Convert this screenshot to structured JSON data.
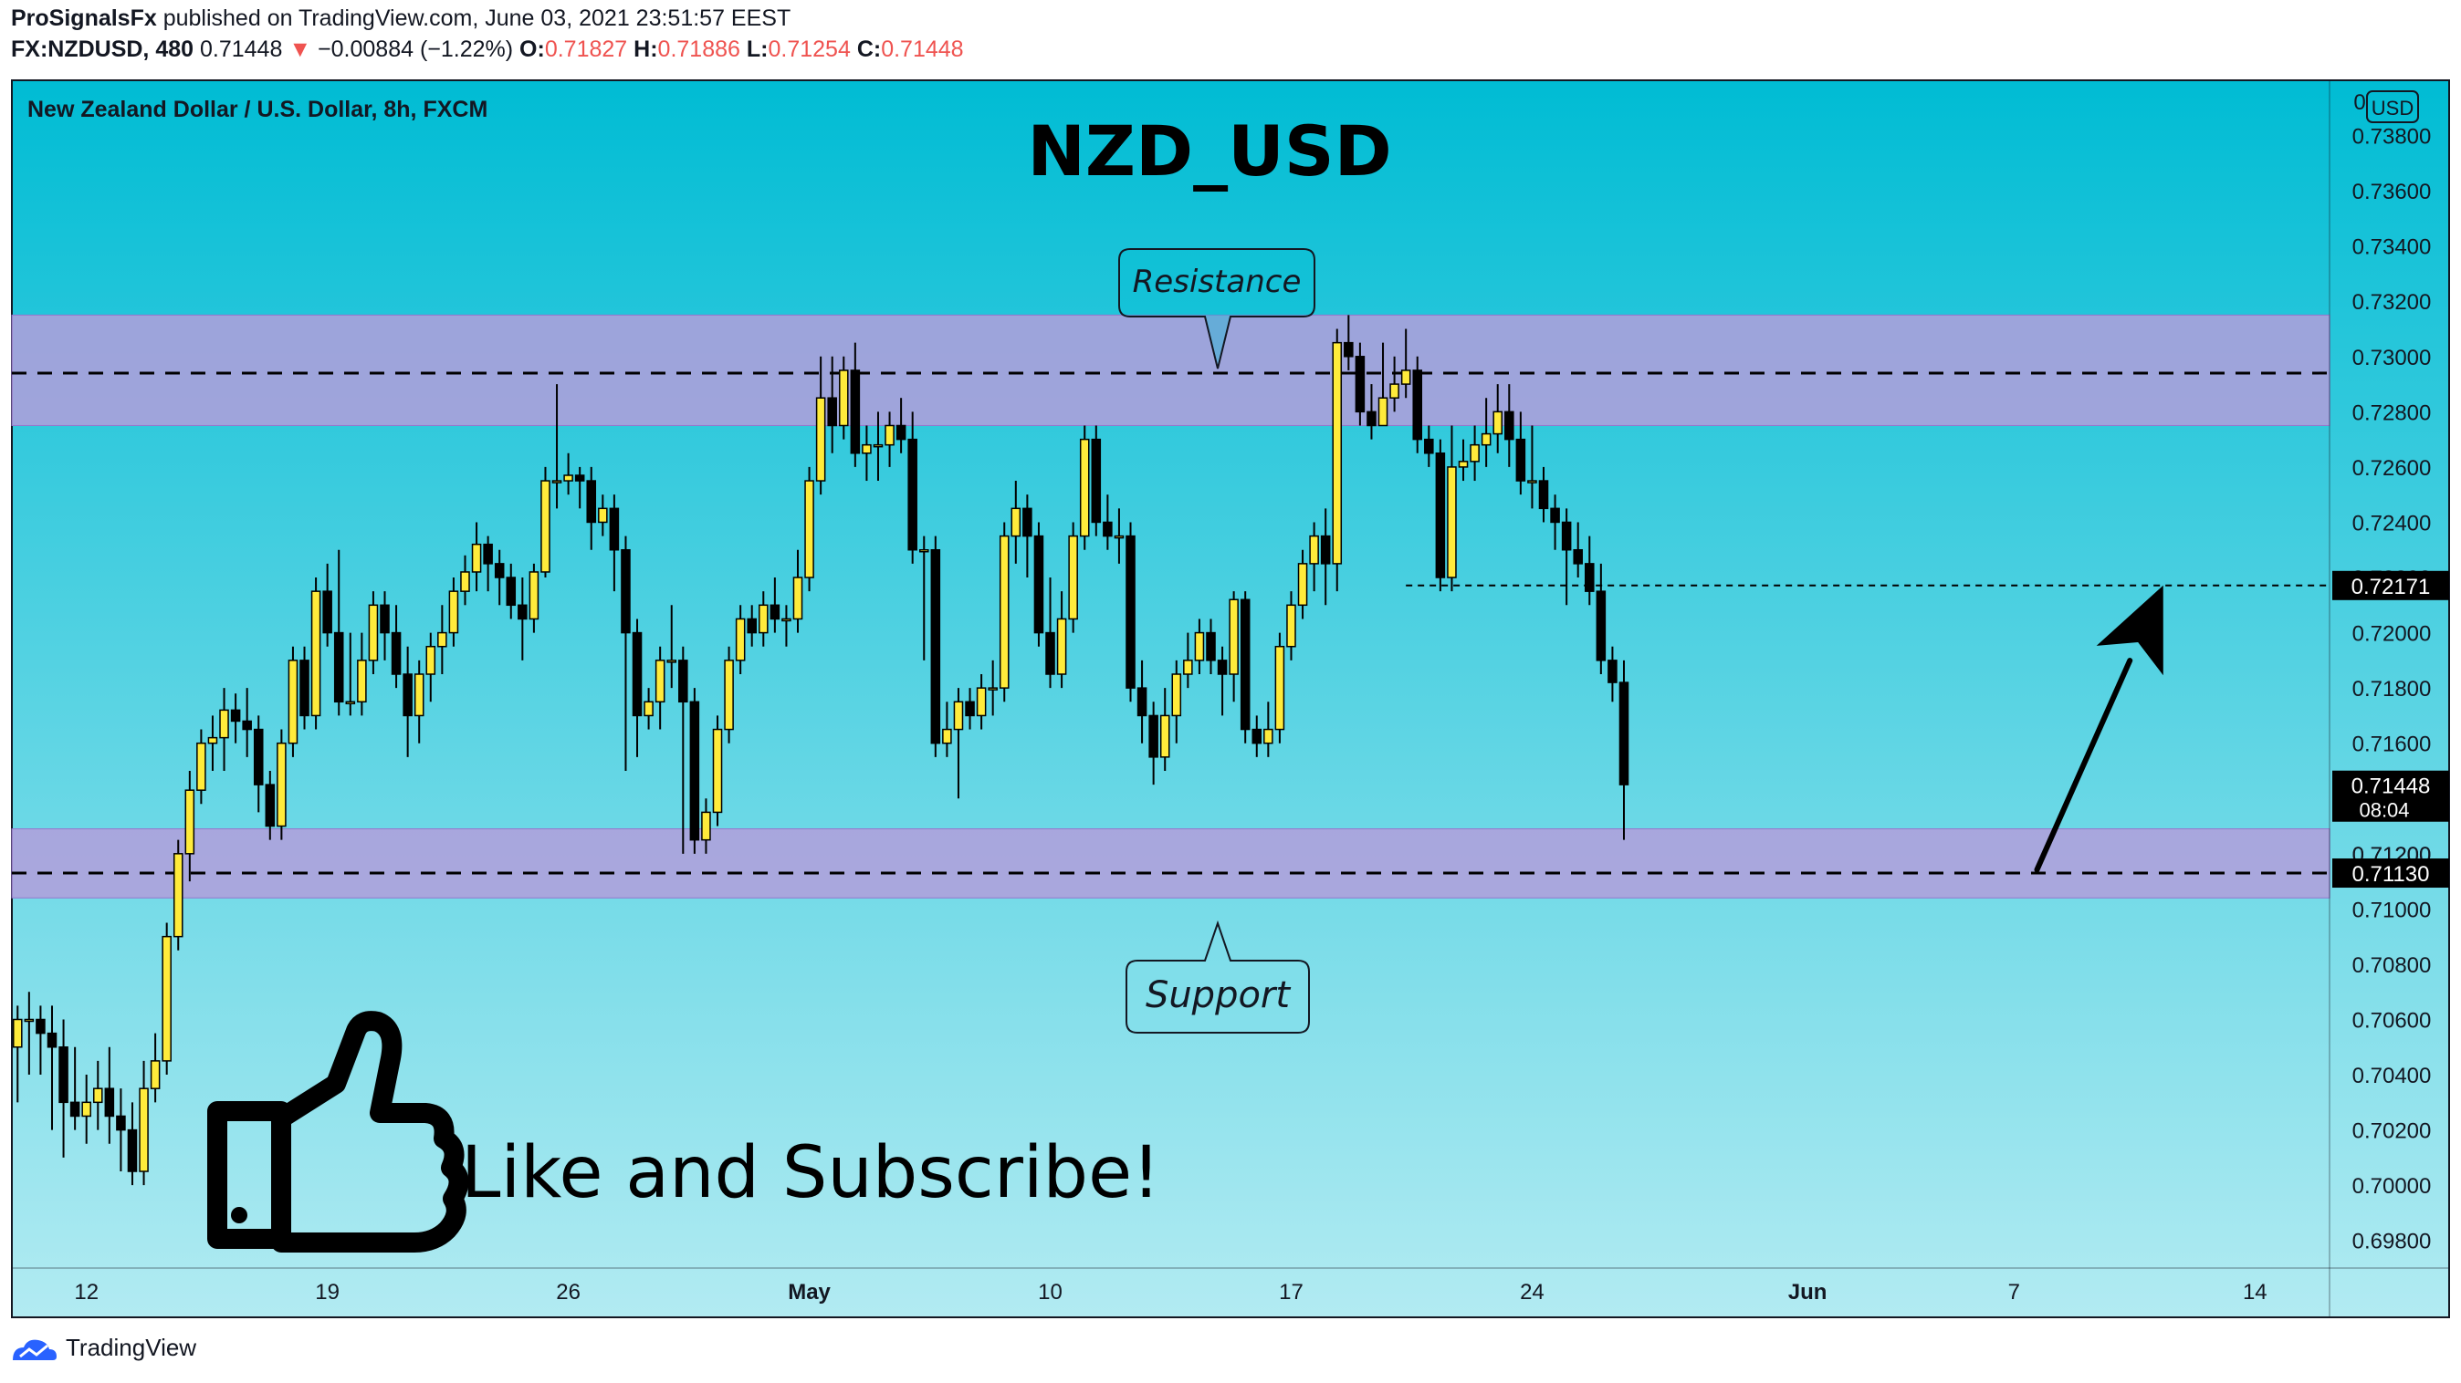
{
  "header": {
    "author": "ProSignalsFx",
    "published_text": " published on TradingView.com, June 03, 2021 23:51:57 EEST",
    "symbol": "FX:NZDUSD, 480",
    "last": "0.71448",
    "change_arrow": "▼",
    "change": "−0.00884 (−1.22%)",
    "o_label": "O:",
    "o_value": "0.71827",
    "h_label": "H:",
    "h_value": "0.71886",
    "l_label": "L:",
    "l_value": "0.71254",
    "c_label": "C:",
    "c_value": "0.71448"
  },
  "footer": {
    "brand": "TradingView",
    "logo_icon": "tradingview-logo-icon"
  },
  "colors": {
    "bg_top": "#00bcd4",
    "bg_bottom": "#b2ebf2",
    "zone": "#b39ddb",
    "bull": "#ffeb3b",
    "bear": "#000000",
    "accent_red": "#ef5350"
  },
  "chart_data": {
    "type": "candlestick",
    "title": "NZD_USD",
    "subtitle": "New Zealand Dollar / U.S. Dollar, 8h, FXCM",
    "currency": "USD",
    "ylim": [
      0.697,
      0.74
    ],
    "y_ticks": [
      "0.73800",
      "0.73600",
      "0.73400",
      "0.73200",
      "0.73000",
      "0.72800",
      "0.72600",
      "0.72400",
      "0.72200",
      "0.72000",
      "0.71800",
      "0.71600",
      "0.71200",
      "0.71000",
      "0.70800",
      "0.70600",
      "0.70400",
      "0.70200",
      "0.70000",
      "0.69800"
    ],
    "x_ticks": [
      {
        "label": "12",
        "index": 6
      },
      {
        "label": "19",
        "index": 27
      },
      {
        "label": "26",
        "index": 48
      },
      {
        "label": "May",
        "index": 69
      },
      {
        "label": "10",
        "index": 90
      },
      {
        "label": "17",
        "index": 111
      },
      {
        "label": "24",
        "index": 132
      },
      {
        "label": "Jun",
        "index": 156
      },
      {
        "label": "7",
        "index": 174
      },
      {
        "label": "14",
        "index": 195
      }
    ],
    "x_slots": 202,
    "candles": [
      [
        0.705,
        0.706,
        0.703,
        0.7065
      ],
      [
        0.706,
        0.706,
        0.704,
        0.707
      ],
      [
        0.706,
        0.7055,
        0.704,
        0.7065
      ],
      [
        0.7055,
        0.705,
        0.702,
        0.7065
      ],
      [
        0.705,
        0.703,
        0.701,
        0.706
      ],
      [
        0.703,
        0.7025,
        0.702,
        0.705
      ],
      [
        0.7025,
        0.703,
        0.7015,
        0.704
      ],
      [
        0.703,
        0.7035,
        0.702,
        0.7045
      ],
      [
        0.7035,
        0.7025,
        0.7015,
        0.705
      ],
      [
        0.7025,
        0.702,
        0.7005,
        0.7035
      ],
      [
        0.702,
        0.7005,
        0.7,
        0.703
      ],
      [
        0.7005,
        0.7035,
        0.7,
        0.7045
      ],
      [
        0.7035,
        0.7045,
        0.703,
        0.7055
      ],
      [
        0.7045,
        0.709,
        0.704,
        0.7095
      ],
      [
        0.709,
        0.712,
        0.7085,
        0.7125
      ],
      [
        0.712,
        0.7143,
        0.711,
        0.715
      ],
      [
        0.7143,
        0.716,
        0.7138,
        0.7165
      ],
      [
        0.716,
        0.7162,
        0.715,
        0.717
      ],
      [
        0.7162,
        0.7172,
        0.715,
        0.718
      ],
      [
        0.7172,
        0.7168,
        0.716,
        0.7178
      ],
      [
        0.7168,
        0.7165,
        0.7155,
        0.718
      ],
      [
        0.7165,
        0.7145,
        0.7135,
        0.717
      ],
      [
        0.7145,
        0.713,
        0.7125,
        0.715
      ],
      [
        0.713,
        0.716,
        0.7125,
        0.7165
      ],
      [
        0.716,
        0.719,
        0.7155,
        0.7195
      ],
      [
        0.719,
        0.717,
        0.7165,
        0.7195
      ],
      [
        0.717,
        0.7215,
        0.7165,
        0.722
      ],
      [
        0.7215,
        0.72,
        0.7195,
        0.7225
      ],
      [
        0.72,
        0.7175,
        0.717,
        0.723
      ],
      [
        0.7175,
        0.7175,
        0.717,
        0.72
      ],
      [
        0.7175,
        0.719,
        0.717,
        0.72
      ],
      [
        0.719,
        0.721,
        0.7185,
        0.7215
      ],
      [
        0.721,
        0.72,
        0.719,
        0.7215
      ],
      [
        0.72,
        0.7185,
        0.718,
        0.721
      ],
      [
        0.7185,
        0.717,
        0.7155,
        0.7195
      ],
      [
        0.717,
        0.7185,
        0.716,
        0.719
      ],
      [
        0.7185,
        0.7195,
        0.7175,
        0.72
      ],
      [
        0.7195,
        0.72,
        0.7185,
        0.721
      ],
      [
        0.72,
        0.7215,
        0.7195,
        0.722
      ],
      [
        0.7215,
        0.7222,
        0.721,
        0.7228
      ],
      [
        0.7222,
        0.7232,
        0.7215,
        0.724
      ],
      [
        0.7232,
        0.7225,
        0.7215,
        0.7235
      ],
      [
        0.7225,
        0.722,
        0.721,
        0.723
      ],
      [
        0.722,
        0.721,
        0.7205,
        0.7225
      ],
      [
        0.721,
        0.7205,
        0.719,
        0.722
      ],
      [
        0.7205,
        0.7222,
        0.72,
        0.7225
      ],
      [
        0.7222,
        0.7255,
        0.722,
        0.726
      ],
      [
        0.7255,
        0.7255,
        0.7245,
        0.729
      ],
      [
        0.7255,
        0.7257,
        0.725,
        0.7265
      ],
      [
        0.7257,
        0.7255,
        0.7245,
        0.726
      ],
      [
        0.7255,
        0.724,
        0.723,
        0.726
      ],
      [
        0.724,
        0.7245,
        0.7235,
        0.725
      ],
      [
        0.7245,
        0.723,
        0.7215,
        0.725
      ],
      [
        0.723,
        0.72,
        0.715,
        0.7235
      ],
      [
        0.72,
        0.717,
        0.7155,
        0.7205
      ],
      [
        0.717,
        0.7175,
        0.7165,
        0.718
      ],
      [
        0.7175,
        0.719,
        0.7165,
        0.7195
      ],
      [
        0.719,
        0.719,
        0.718,
        0.721
      ],
      [
        0.719,
        0.7175,
        0.712,
        0.7195
      ],
      [
        0.7175,
        0.7125,
        0.712,
        0.718
      ],
      [
        0.7125,
        0.7135,
        0.712,
        0.714
      ],
      [
        0.7135,
        0.7165,
        0.713,
        0.717
      ],
      [
        0.7165,
        0.719,
        0.716,
        0.7195
      ],
      [
        0.719,
        0.7205,
        0.7185,
        0.721
      ],
      [
        0.7205,
        0.72,
        0.7195,
        0.721
      ],
      [
        0.72,
        0.721,
        0.7195,
        0.7215
      ],
      [
        0.721,
        0.7205,
        0.72,
        0.722
      ],
      [
        0.7205,
        0.7205,
        0.7195,
        0.721
      ],
      [
        0.7205,
        0.722,
        0.72,
        0.723
      ],
      [
        0.722,
        0.7255,
        0.7215,
        0.726
      ],
      [
        0.7255,
        0.7285,
        0.725,
        0.73
      ],
      [
        0.7285,
        0.7275,
        0.7265,
        0.73
      ],
      [
        0.7275,
        0.7295,
        0.727,
        0.73
      ],
      [
        0.7295,
        0.7265,
        0.726,
        0.7305
      ],
      [
        0.7265,
        0.7268,
        0.7255,
        0.7275
      ],
      [
        0.7268,
        0.7268,
        0.7255,
        0.728
      ],
      [
        0.7268,
        0.7275,
        0.726,
        0.728
      ],
      [
        0.7275,
        0.727,
        0.7265,
        0.7285
      ],
      [
        0.727,
        0.723,
        0.7225,
        0.728
      ],
      [
        0.723,
        0.723,
        0.719,
        0.7235
      ],
      [
        0.723,
        0.716,
        0.7155,
        0.7235
      ],
      [
        0.716,
        0.7165,
        0.7155,
        0.7175
      ],
      [
        0.7165,
        0.7175,
        0.714,
        0.718
      ],
      [
        0.7175,
        0.717,
        0.7165,
        0.718
      ],
      [
        0.717,
        0.718,
        0.7165,
        0.7185
      ],
      [
        0.718,
        0.718,
        0.717,
        0.719
      ],
      [
        0.718,
        0.7235,
        0.7175,
        0.724
      ],
      [
        0.7235,
        0.7245,
        0.7225,
        0.7255
      ],
      [
        0.7245,
        0.7235,
        0.722,
        0.725
      ],
      [
        0.7235,
        0.72,
        0.7195,
        0.724
      ],
      [
        0.72,
        0.7185,
        0.718,
        0.722
      ],
      [
        0.7185,
        0.7205,
        0.718,
        0.7215
      ],
      [
        0.7205,
        0.7235,
        0.72,
        0.724
      ],
      [
        0.7235,
        0.727,
        0.723,
        0.7275
      ],
      [
        0.727,
        0.724,
        0.7235,
        0.7275
      ],
      [
        0.724,
        0.7235,
        0.723,
        0.725
      ],
      [
        0.7235,
        0.7235,
        0.7225,
        0.7245
      ],
      [
        0.7235,
        0.718,
        0.7175,
        0.724
      ],
      [
        0.718,
        0.717,
        0.716,
        0.719
      ],
      [
        0.717,
        0.7155,
        0.7145,
        0.7175
      ],
      [
        0.7155,
        0.717,
        0.715,
        0.718
      ],
      [
        0.717,
        0.7185,
        0.716,
        0.719
      ],
      [
        0.7185,
        0.719,
        0.718,
        0.72
      ],
      [
        0.719,
        0.72,
        0.7185,
        0.7205
      ],
      [
        0.72,
        0.719,
        0.7185,
        0.7205
      ],
      [
        0.719,
        0.7185,
        0.717,
        0.7195
      ],
      [
        0.7185,
        0.7212,
        0.7175,
        0.7215
      ],
      [
        0.7212,
        0.7165,
        0.716,
        0.7215
      ],
      [
        0.7165,
        0.716,
        0.7155,
        0.717
      ],
      [
        0.716,
        0.7165,
        0.7155,
        0.7175
      ],
      [
        0.7165,
        0.7195,
        0.716,
        0.72
      ],
      [
        0.7195,
        0.721,
        0.719,
        0.7215
      ],
      [
        0.721,
        0.7225,
        0.7205,
        0.723
      ],
      [
        0.7225,
        0.7235,
        0.7215,
        0.724
      ],
      [
        0.7235,
        0.7225,
        0.721,
        0.7245
      ],
      [
        0.7225,
        0.7305,
        0.7215,
        0.731
      ],
      [
        0.7305,
        0.73,
        0.7295,
        0.7315
      ],
      [
        0.73,
        0.728,
        0.7275,
        0.7305
      ],
      [
        0.728,
        0.7275,
        0.727,
        0.729
      ],
      [
        0.7275,
        0.7285,
        0.7275,
        0.7305
      ],
      [
        0.7285,
        0.729,
        0.728,
        0.73
      ],
      [
        0.729,
        0.7295,
        0.7285,
        0.731
      ],
      [
        0.7295,
        0.727,
        0.7265,
        0.73
      ],
      [
        0.727,
        0.7265,
        0.726,
        0.7275
      ],
      [
        0.7265,
        0.722,
        0.7215,
        0.727
      ],
      [
        0.722,
        0.726,
        0.7215,
        0.7275
      ],
      [
        0.726,
        0.7262,
        0.7255,
        0.727
      ],
      [
        0.7262,
        0.7268,
        0.7255,
        0.7275
      ],
      [
        0.7268,
        0.7272,
        0.726,
        0.7285
      ],
      [
        0.7272,
        0.728,
        0.7265,
        0.729
      ],
      [
        0.728,
        0.727,
        0.726,
        0.729
      ],
      [
        0.727,
        0.7255,
        0.725,
        0.728
      ],
      [
        0.7255,
        0.7255,
        0.7245,
        0.7275
      ],
      [
        0.7255,
        0.7245,
        0.724,
        0.726
      ],
      [
        0.7245,
        0.724,
        0.723,
        0.725
      ],
      [
        0.724,
        0.723,
        0.721,
        0.7245
      ],
      [
        0.723,
        0.7225,
        0.722,
        0.724
      ],
      [
        0.7225,
        0.7215,
        0.721,
        0.7235
      ],
      [
        0.7215,
        0.719,
        0.7185,
        0.7225
      ],
      [
        0.719,
        0.7182,
        0.7175,
        0.7195
      ],
      [
        0.7182,
        0.7145,
        0.7125,
        0.719
      ]
    ],
    "candles_format": "open, close, low, high",
    "zones": [
      {
        "name": "Resistance",
        "from": 0.7275,
        "to": 0.7315,
        "level": 0.7294
      },
      {
        "name": "Support",
        "from": 0.7104,
        "to": 0.7129,
        "level": 0.7113
      }
    ],
    "labels": {
      "resistance": "Resistance",
      "support": "Support"
    },
    "target_line": {
      "value": 0.72171,
      "label": "0.72171"
    },
    "support_label": "0.71130",
    "last_price": {
      "value": 0.71448,
      "label": "0.71448",
      "countdown": "08:04",
      "partial_tick": "0.71200"
    },
    "arrow": {
      "from": [
        0.71142,
        176
      ],
      "to": [
        0.72171,
        187
      ]
    },
    "cta": {
      "text": "Like and Subscribe!",
      "icon": "thumbs-up-icon"
    }
  }
}
